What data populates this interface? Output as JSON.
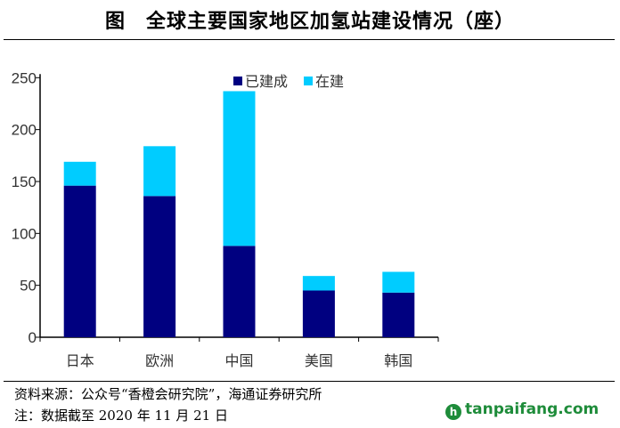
{
  "title": "图　全球主要国家地区加氢站建设情况（座）",
  "source": "资料来源：公众号“香橙会研究院”，海通证券研究所",
  "note": "注：数据截至 2020 年 11 月 21 日",
  "watermark": "tanpaifang.com",
  "chart_data": {
    "type": "bar",
    "stacked": true,
    "categories": [
      "日本",
      "欧洲",
      "中国",
      "美国",
      "韩国"
    ],
    "series": [
      {
        "name": "已建成",
        "values": [
          146,
          136,
          88,
          45,
          43
        ],
        "color": "#000080"
      },
      {
        "name": "在建",
        "values": [
          23,
          48,
          149,
          14,
          20
        ],
        "color": "#00CCFF"
      }
    ],
    "ylim": [
      0,
      250
    ],
    "yticks": [
      0,
      50,
      100,
      150,
      200,
      250
    ],
    "grid": false,
    "legend": "top-center"
  }
}
